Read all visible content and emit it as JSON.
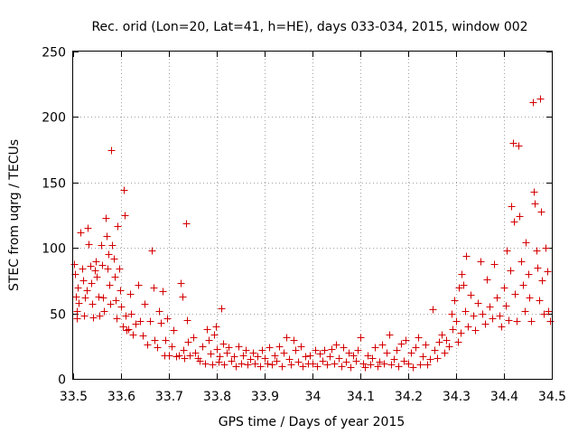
{
  "chart_data": {
    "type": "scatter",
    "title": "Rec. orid (Lon=20, Lat=41, h=HE), days 033-034, 2015, window 002",
    "xlabel": "GPS time / Days of year 2015",
    "ylabel": "STEC from uqrg / TECUs",
    "xlim": [
      33.5,
      34.5
    ],
    "ylim": [
      0,
      250
    ],
    "x_ticks": [
      "33.5",
      "33.6",
      "33.7",
      "33.8",
      "33.9",
      "34",
      "34.1",
      "34.2",
      "34.3",
      "34.4",
      "34.5"
    ],
    "y_ticks": [
      "0",
      "50",
      "100",
      "150",
      "200",
      "250"
    ],
    "grid": true,
    "marker": "plus",
    "color": "#d40000",
    "points": [
      [
        33.501,
        88
      ],
      [
        33.503,
        80
      ],
      [
        33.505,
        63
      ],
      [
        33.507,
        52
      ],
      [
        33.508,
        46
      ],
      [
        33.51,
        70
      ],
      [
        33.512,
        58
      ],
      [
        33.515,
        112
      ],
      [
        33.518,
        84
      ],
      [
        33.52,
        75
      ],
      [
        33.522,
        48
      ],
      [
        33.525,
        62
      ],
      [
        33.528,
        68
      ],
      [
        33.53,
        115
      ],
      [
        33.532,
        103
      ],
      [
        33.535,
        86
      ],
      [
        33.538,
        73
      ],
      [
        33.54,
        57
      ],
      [
        33.542,
        47
      ],
      [
        33.545,
        83
      ],
      [
        33.548,
        90
      ],
      [
        33.55,
        78
      ],
      [
        33.552,
        63
      ],
      [
        33.555,
        48
      ],
      [
        33.558,
        102
      ],
      [
        33.56,
        87
      ],
      [
        33.562,
        62
      ],
      [
        33.565,
        52
      ],
      [
        33.568,
        123
      ],
      [
        33.57,
        109
      ],
      [
        33.572,
        84
      ],
      [
        33.574,
        95
      ],
      [
        33.576,
        72
      ],
      [
        33.578,
        57
      ],
      [
        33.58,
        175
      ],
      [
        33.582,
        102
      ],
      [
        33.584,
        92
      ],
      [
        33.586,
        78
      ],
      [
        33.588,
        60
      ],
      [
        33.59,
        46
      ],
      [
        33.593,
        117
      ],
      [
        33.596,
        84
      ],
      [
        33.598,
        68
      ],
      [
        33.6,
        55
      ],
      [
        33.603,
        40
      ],
      [
        33.606,
        144
      ],
      [
        33.608,
        125
      ],
      [
        33.61,
        48
      ],
      [
        33.612,
        37
      ],
      [
        33.615,
        38
      ],
      [
        33.618,
        65
      ],
      [
        33.62,
        50
      ],
      [
        33.625,
        34
      ],
      [
        33.63,
        42
      ],
      [
        33.635,
        72
      ],
      [
        33.64,
        44
      ],
      [
        33.645,
        33
      ],
      [
        33.65,
        57
      ],
      [
        33.655,
        26
      ],
      [
        33.66,
        44
      ],
      [
        33.665,
        98
      ],
      [
        33.668,
        70
      ],
      [
        33.67,
        30
      ],
      [
        33.675,
        24
      ],
      [
        33.68,
        52
      ],
      [
        33.683,
        43
      ],
      [
        33.686,
        67
      ],
      [
        33.69,
        18
      ],
      [
        33.693,
        30
      ],
      [
        33.696,
        46
      ],
      [
        33.7,
        18
      ],
      [
        33.705,
        25
      ],
      [
        33.71,
        37
      ],
      [
        33.715,
        17
      ],
      [
        33.72,
        18
      ],
      [
        33.725,
        73
      ],
      [
        33.728,
        63
      ],
      [
        33.73,
        22
      ],
      [
        33.733,
        16
      ],
      [
        33.736,
        119
      ],
      [
        33.738,
        45
      ],
      [
        33.74,
        28
      ],
      [
        33.743,
        18
      ],
      [
        33.75,
        32
      ],
      [
        33.755,
        20
      ],
      [
        33.76,
        16
      ],
      [
        33.765,
        14
      ],
      [
        33.77,
        25
      ],
      [
        33.775,
        12
      ],
      [
        33.78,
        38
      ],
      [
        33.783,
        30
      ],
      [
        33.786,
        19
      ],
      [
        33.79,
        11
      ],
      [
        33.795,
        34
      ],
      [
        33.798,
        40
      ],
      [
        33.8,
        23
      ],
      [
        33.803,
        13
      ],
      [
        33.806,
        17
      ],
      [
        33.81,
        54
      ],
      [
        33.813,
        27
      ],
      [
        33.816,
        11
      ],
      [
        33.82,
        20
      ],
      [
        33.825,
        24
      ],
      [
        33.83,
        14
      ],
      [
        33.835,
        17
      ],
      [
        33.84,
        10
      ],
      [
        33.845,
        25
      ],
      [
        33.85,
        12
      ],
      [
        33.855,
        18
      ],
      [
        33.86,
        22
      ],
      [
        33.865,
        11
      ],
      [
        33.87,
        15
      ],
      [
        33.875,
        20
      ],
      [
        33.88,
        12
      ],
      [
        33.885,
        17
      ],
      [
        33.89,
        10
      ],
      [
        33.895,
        22
      ],
      [
        33.9,
        16
      ],
      [
        33.905,
        12
      ],
      [
        33.91,
        24
      ],
      [
        33.915,
        11
      ],
      [
        33.92,
        18
      ],
      [
        33.925,
        14
      ],
      [
        33.93,
        25
      ],
      [
        33.935,
        10
      ],
      [
        33.94,
        20
      ],
      [
        33.945,
        32
      ],
      [
        33.95,
        15
      ],
      [
        33.955,
        11
      ],
      [
        33.96,
        30
      ],
      [
        33.965,
        22
      ],
      [
        33.97,
        13
      ],
      [
        33.975,
        25
      ],
      [
        33.98,
        10
      ],
      [
        33.985,
        17
      ],
      [
        33.99,
        12
      ],
      [
        33.995,
        18
      ],
      [
        34.0,
        12
      ],
      [
        34.005,
        22
      ],
      [
        34.01,
        10
      ],
      [
        34.015,
        19
      ],
      [
        34.02,
        14
      ],
      [
        34.025,
        22
      ],
      [
        34.03,
        11
      ],
      [
        34.035,
        17
      ],
      [
        34.04,
        23
      ],
      [
        34.045,
        12
      ],
      [
        34.05,
        26
      ],
      [
        34.055,
        16
      ],
      [
        34.06,
        10
      ],
      [
        34.065,
        24
      ],
      [
        34.07,
        13
      ],
      [
        34.075,
        20
      ],
      [
        34.08,
        9
      ],
      [
        34.085,
        18
      ],
      [
        34.09,
        14
      ],
      [
        34.095,
        22
      ],
      [
        34.1,
        32
      ],
      [
        34.105,
        12
      ],
      [
        34.11,
        9
      ],
      [
        34.115,
        18
      ],
      [
        34.12,
        11
      ],
      [
        34.125,
        16
      ],
      [
        34.13,
        24
      ],
      [
        34.135,
        10
      ],
      [
        34.14,
        13
      ],
      [
        34.145,
        26
      ],
      [
        34.15,
        12
      ],
      [
        34.155,
        20
      ],
      [
        34.16,
        34
      ],
      [
        34.165,
        11
      ],
      [
        34.17,
        15
      ],
      [
        34.175,
        22
      ],
      [
        34.18,
        10
      ],
      [
        34.185,
        27
      ],
      [
        34.19,
        14
      ],
      [
        34.195,
        30
      ],
      [
        34.2,
        12
      ],
      [
        34.205,
        20
      ],
      [
        34.21,
        9
      ],
      [
        34.215,
        24
      ],
      [
        34.22,
        32
      ],
      [
        34.225,
        11
      ],
      [
        34.23,
        17
      ],
      [
        34.235,
        26
      ],
      [
        34.24,
        11
      ],
      [
        34.245,
        15
      ],
      [
        34.25,
        53
      ],
      [
        34.255,
        22
      ],
      [
        34.26,
        16
      ],
      [
        34.265,
        28
      ],
      [
        34.27,
        34
      ],
      [
        34.275,
        20
      ],
      [
        34.28,
        30
      ],
      [
        34.285,
        25
      ],
      [
        34.29,
        50
      ],
      [
        34.293,
        38
      ],
      [
        34.296,
        60
      ],
      [
        34.3,
        44
      ],
      [
        34.303,
        28
      ],
      [
        34.306,
        70
      ],
      [
        34.31,
        35
      ],
      [
        34.312,
        80
      ],
      [
        34.315,
        72
      ],
      [
        34.318,
        52
      ],
      [
        34.32,
        94
      ],
      [
        34.325,
        40
      ],
      [
        34.33,
        64
      ],
      [
        34.335,
        48
      ],
      [
        34.34,
        37
      ],
      [
        34.345,
        58
      ],
      [
        34.35,
        90
      ],
      [
        34.355,
        50
      ],
      [
        34.36,
        42
      ],
      [
        34.365,
        76
      ],
      [
        34.37,
        55
      ],
      [
        34.375,
        46
      ],
      [
        34.38,
        88
      ],
      [
        34.385,
        62
      ],
      [
        34.39,
        48
      ],
      [
        34.395,
        40
      ],
      [
        34.4,
        70
      ],
      [
        34.403,
        56
      ],
      [
        34.406,
        98
      ],
      [
        34.41,
        45
      ],
      [
        34.413,
        83
      ],
      [
        34.416,
        132
      ],
      [
        34.418,
        180
      ],
      [
        34.42,
        120
      ],
      [
        34.423,
        65
      ],
      [
        34.426,
        44
      ],
      [
        34.43,
        178
      ],
      [
        34.433,
        124
      ],
      [
        34.436,
        90
      ],
      [
        34.44,
        72
      ],
      [
        34.443,
        52
      ],
      [
        34.446,
        104
      ],
      [
        34.45,
        80
      ],
      [
        34.453,
        62
      ],
      [
        34.456,
        44
      ],
      [
        34.46,
        211
      ],
      [
        34.462,
        143
      ],
      [
        34.465,
        134
      ],
      [
        34.468,
        98
      ],
      [
        34.47,
        85
      ],
      [
        34.473,
        60
      ],
      [
        34.476,
        214
      ],
      [
        34.478,
        128
      ],
      [
        34.48,
        75
      ],
      [
        34.483,
        50
      ],
      [
        34.486,
        100
      ],
      [
        34.49,
        82
      ],
      [
        34.493,
        52
      ],
      [
        34.496,
        44
      ]
    ]
  }
}
